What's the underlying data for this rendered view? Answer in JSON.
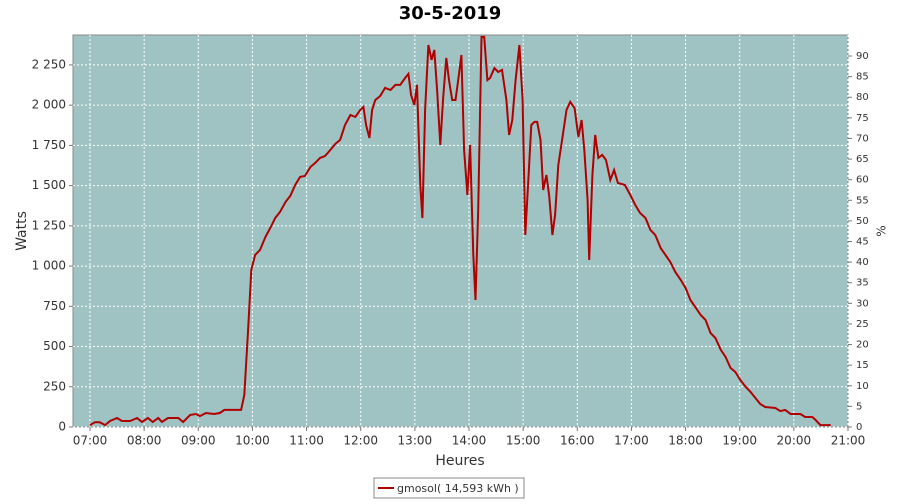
{
  "chart_data": {
    "type": "line",
    "title": "30-5-2019",
    "x_label": "Heures",
    "y_label": "Watts",
    "y2_label": "%",
    "legend": "gmosol( 14,593 kWh )",
    "xlim": [
      6.686,
      21
    ],
    "xticks": [
      {
        "value": 7,
        "label": "07:00"
      },
      {
        "value": 8,
        "label": "08:00"
      },
      {
        "value": 9,
        "label": "09:00"
      },
      {
        "value": 10,
        "label": "10:00"
      },
      {
        "value": 11,
        "label": "11:00"
      },
      {
        "value": 12,
        "label": "12:00"
      },
      {
        "value": 13,
        "label": "13:00"
      },
      {
        "value": 14,
        "label": "14:00"
      },
      {
        "value": 15,
        "label": "15:00"
      },
      {
        "value": 16,
        "label": "16:00"
      },
      {
        "value": 17,
        "label": "17:00"
      },
      {
        "value": 18,
        "label": "18:00"
      },
      {
        "value": 19,
        "label": "19:00"
      },
      {
        "value": 20,
        "label": "20:00"
      },
      {
        "value": 21,
        "label": "21:00"
      }
    ],
    "ylim": [
      0,
      2436
    ],
    "yticks": [
      0,
      250,
      500,
      750,
      {
        "value": 1000,
        "label": "1 000"
      },
      {
        "value": 1250,
        "label": "1 250"
      },
      {
        "value": 1500,
        "label": "1 500"
      },
      {
        "value": 1750,
        "label": "1 750"
      },
      {
        "value": 2000,
        "label": "2 000"
      },
      {
        "value": 2250,
        "label": "2 250"
      }
    ],
    "y2lim": [
      0,
      95.1
    ],
    "y2ticks": [
      0,
      5,
      10,
      15,
      20,
      25,
      30,
      35,
      40,
      45,
      50,
      55,
      60,
      65,
      70,
      75,
      80,
      85,
      90
    ],
    "grid": true,
    "background": "#9fc3c3",
    "series": [
      {
        "name": "gmosol",
        "color": "#b00000",
        "x": [
          7.0,
          7.09,
          7.18,
          7.28,
          7.37,
          7.5,
          7.59,
          7.74,
          7.87,
          7.96,
          8.07,
          8.16,
          8.26,
          8.33,
          8.44,
          8.63,
          8.72,
          8.85,
          8.96,
          9.03,
          9.14,
          9.29,
          9.4,
          9.48,
          9.68,
          9.79,
          9.85,
          9.92,
          9.98,
          10.05,
          10.14,
          10.24,
          10.33,
          10.42,
          10.51,
          10.61,
          10.7,
          10.79,
          10.88,
          10.97,
          11.07,
          11.16,
          11.25,
          11.34,
          11.44,
          11.53,
          11.62,
          11.71,
          11.81,
          11.9,
          11.99,
          12.05,
          12.1,
          12.16,
          12.21,
          12.27,
          12.36,
          12.45,
          12.55,
          12.64,
          12.73,
          12.82,
          12.88,
          12.93,
          12.99,
          13.04,
          13.1,
          13.14,
          13.19,
          13.25,
          13.31,
          13.36,
          13.41,
          13.47,
          13.52,
          13.58,
          13.63,
          13.69,
          13.75,
          13.8,
          13.86,
          13.91,
          13.97,
          14.02,
          14.08,
          14.12,
          14.17,
          14.23,
          14.28,
          14.34,
          14.39,
          14.47,
          14.54,
          14.61,
          14.69,
          14.74,
          14.8,
          14.86,
          14.93,
          14.99,
          15.04,
          15.1,
          15.15,
          15.21,
          15.26,
          15.32,
          15.37,
          15.43,
          15.48,
          15.54,
          15.59,
          15.65,
          15.72,
          15.8,
          15.87,
          15.95,
          16.02,
          16.08,
          16.13,
          16.19,
          16.22,
          16.28,
          16.33,
          16.39,
          16.46,
          16.53,
          16.61,
          16.68,
          16.75,
          16.88,
          16.98,
          17.07,
          17.16,
          17.26,
          17.35,
          17.44,
          17.54,
          17.63,
          17.72,
          17.81,
          17.91,
          18.0,
          18.09,
          18.19,
          18.28,
          18.37,
          18.46,
          18.55,
          18.65,
          18.74,
          18.83,
          18.92,
          19.01,
          19.11,
          19.2,
          19.29,
          19.38,
          19.47,
          19.66,
          19.75,
          19.84,
          19.94,
          20.03,
          20.12,
          20.21,
          20.34,
          20.4,
          20.49,
          20.68
        ],
        "values": [
          12,
          30,
          30,
          12,
          37,
          56,
          37,
          37,
          56,
          31,
          56,
          31,
          56,
          31,
          56,
          56,
          31,
          75,
          81,
          68,
          87,
          81,
          87,
          106,
          106,
          106,
          199,
          603,
          976,
          1069,
          1100,
          1181,
          1237,
          1299,
          1336,
          1398,
          1436,
          1504,
          1554,
          1560,
          1616,
          1641,
          1672,
          1684,
          1722,
          1759,
          1784,
          1877,
          1939,
          1927,
          1970,
          1989,
          1877,
          1796,
          1970,
          2032,
          2057,
          2107,
          2094,
          2126,
          2126,
          2169,
          2194,
          2063,
          2001,
          2126,
          1504,
          1299,
          1970,
          2374,
          2281,
          2343,
          2094,
          1753,
          2032,
          2293,
          2156,
          2032,
          2032,
          2156,
          2312,
          1722,
          1442,
          1753,
          1069,
          789,
          1349,
          2424,
          2424,
          2156,
          2169,
          2231,
          2206,
          2219,
          2032,
          1815,
          1908,
          2156,
          2374,
          2032,
          1193,
          1566,
          1877,
          1896,
          1896,
          1784,
          1473,
          1566,
          1442,
          1193,
          1318,
          1628,
          1784,
          1970,
          2020,
          1982,
          1802,
          1908,
          1722,
          1411,
          1038,
          1566,
          1815,
          1672,
          1691,
          1659,
          1535,
          1597,
          1516,
          1504,
          1442,
          1380,
          1330,
          1299,
          1224,
          1193,
          1112,
          1069,
          1025,
          963,
          914,
          864,
          789,
          740,
          696,
          665,
          584,
          553,
          479,
          435,
          367,
          342,
          292,
          249,
          218,
          180,
          143,
          124,
          118,
          99,
          106,
          81,
          81,
          81,
          62,
          62,
          44,
          12,
          12
        ]
      }
    ]
  }
}
